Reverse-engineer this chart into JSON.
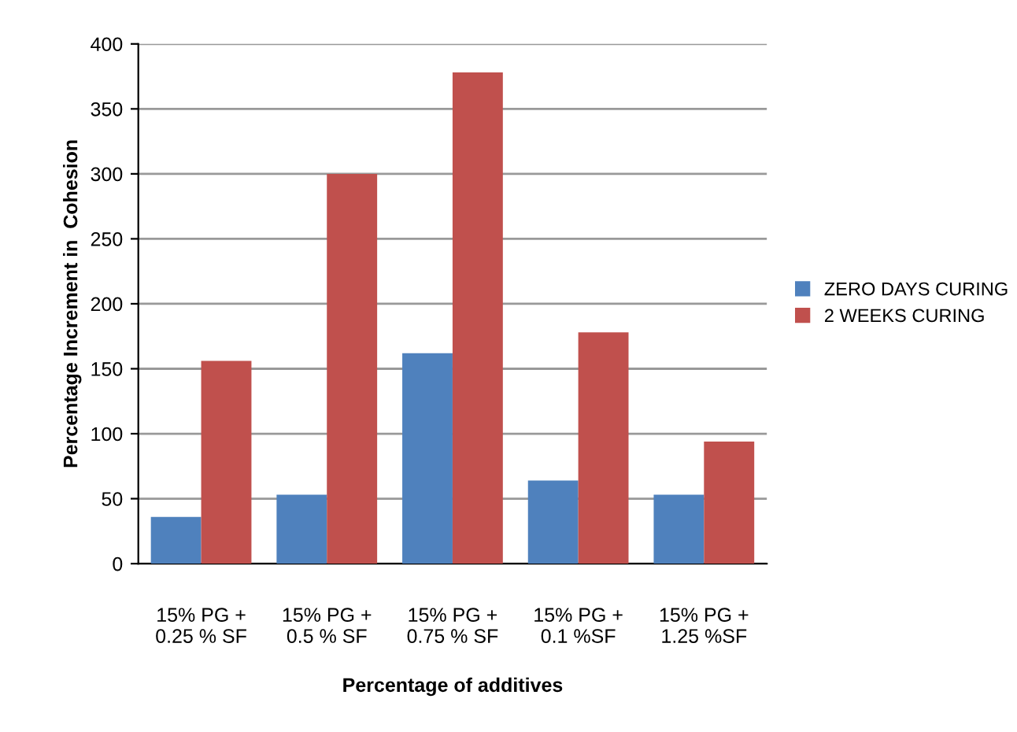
{
  "chart_data": {
    "type": "bar",
    "xlabel": "Percentage of additives",
    "ylabel": "Percentage Increment in  Cohesion",
    "categories": [
      "15% PG +\n0.25 % SF",
      "15% PG +\n0.5 % SF",
      "15% PG +\n0.75 % SF",
      "15% PG +\n0.1 %SF",
      "15% PG +\n1.25 %SF"
    ],
    "series": [
      {
        "name": "ZERO DAYS CURING",
        "color": "#4f81bd",
        "values": [
          36,
          53,
          162,
          64,
          53
        ]
      },
      {
        "name": "2 WEEKS CURING",
        "color": "#c0504d",
        "values": [
          156,
          300,
          378,
          178,
          94
        ]
      }
    ],
    "ylim": [
      0,
      400
    ],
    "yticks": [
      0,
      50,
      100,
      150,
      200,
      250,
      300,
      350,
      400
    ],
    "grid": "y",
    "legend": "right"
  }
}
